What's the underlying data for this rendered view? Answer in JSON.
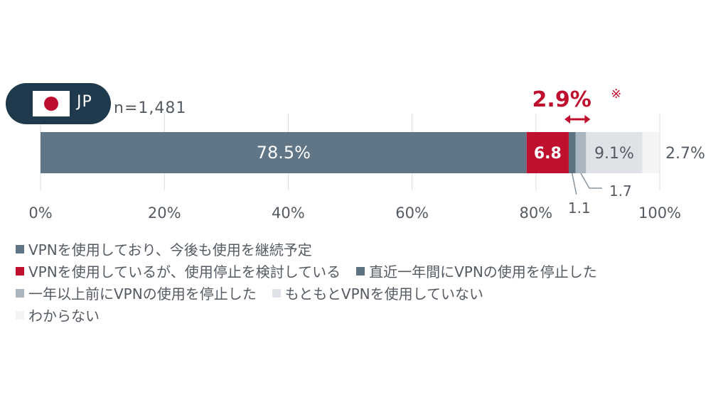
{
  "country": {
    "code": "JP",
    "sample_size": "n=1,481"
  },
  "chart_data": {
    "type": "bar",
    "orientation": "horizontal-stacked-100",
    "categories": [
      "JP"
    ],
    "series": [
      {
        "name": "VPNを使用しており、今後も使用を継続予定",
        "value": 78.5,
        "label": "78.5%",
        "color": "#607686"
      },
      {
        "name": "VPNを使用しているが、使用停止を検討している",
        "value": 6.8,
        "label": "6.8",
        "color": "#c0102f"
      },
      {
        "name": "直近一年間にVPNの使用を停止した",
        "value": 1.1,
        "label": "1.1",
        "color": "#5d7382"
      },
      {
        "name": "一年以上前にVPNの使用を停止した",
        "value": 1.7,
        "label": "1.7",
        "color": "#a9b6bf"
      },
      {
        "name": "もともとVPNを使用していない",
        "value": 9.1,
        "label": "9.1%",
        "color": "#dfe3e7"
      },
      {
        "name": "わからない",
        "value": 2.7,
        "label": "2.7%",
        "color": "#f3f4f5"
      }
    ],
    "xlim": [
      0,
      100
    ],
    "xticks": [
      "0%",
      "20%",
      "40%",
      "60%",
      "80%",
      "100%"
    ],
    "grid": true,
    "annotation": {
      "text": "2.9%",
      "mark": "※",
      "color": "#c0102f"
    },
    "legend_position": "bottom"
  }
}
